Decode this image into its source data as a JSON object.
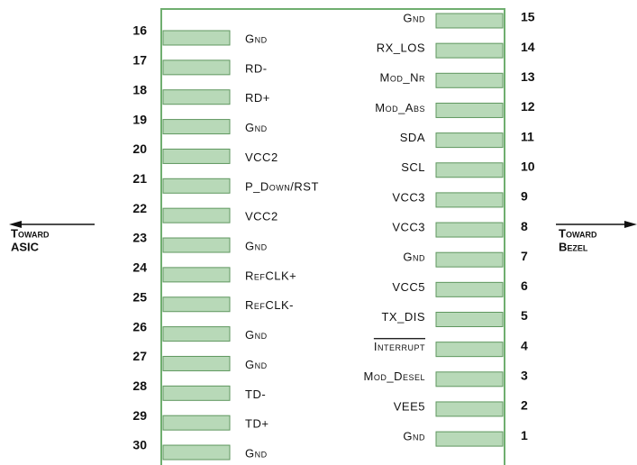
{
  "left_pins": [
    {
      "number": "16",
      "label": "Gnd"
    },
    {
      "number": "17",
      "label": "RD-"
    },
    {
      "number": "18",
      "label": "RD+"
    },
    {
      "number": "19",
      "label": "Gnd"
    },
    {
      "number": "20",
      "label": "VCC2"
    },
    {
      "number": "21",
      "label": "P_Down/RST"
    },
    {
      "number": "22",
      "label": "VCC2"
    },
    {
      "number": "23",
      "label": "Gnd"
    },
    {
      "number": "24",
      "label": "RefCLK+"
    },
    {
      "number": "25",
      "label": "RefCLK-"
    },
    {
      "number": "26",
      "label": "Gnd"
    },
    {
      "number": "27",
      "label": "Gnd"
    },
    {
      "number": "28",
      "label": "TD-"
    },
    {
      "number": "29",
      "label": "TD+"
    },
    {
      "number": "30",
      "label": "Gnd"
    }
  ],
  "right_pins": [
    {
      "number": "15",
      "label": "Gnd"
    },
    {
      "number": "14",
      "label": "RX_LOS"
    },
    {
      "number": "13",
      "label": "Mod_Nr"
    },
    {
      "number": "12",
      "label": "Mod_Abs"
    },
    {
      "number": "11",
      "label": "SDA"
    },
    {
      "number": "10",
      "label": "SCL"
    },
    {
      "number": "9",
      "label": "VCC3"
    },
    {
      "number": "8",
      "label": "VCC3"
    },
    {
      "number": "7",
      "label": "Gnd"
    },
    {
      "number": "6",
      "label": "VCC5"
    },
    {
      "number": "5",
      "label": "TX_DIS"
    },
    {
      "number": "4",
      "label": "Interrupt"
    },
    {
      "number": "3",
      "label": "Mod_Desel"
    },
    {
      "number": "2",
      "label": "VEE5"
    },
    {
      "number": "1",
      "label": "Gnd"
    }
  ],
  "left_direction": {
    "line1": "Toward",
    "line2": "ASIC"
  },
  "right_direction": {
    "line1": "Toward",
    "line2": "Bezel"
  }
}
